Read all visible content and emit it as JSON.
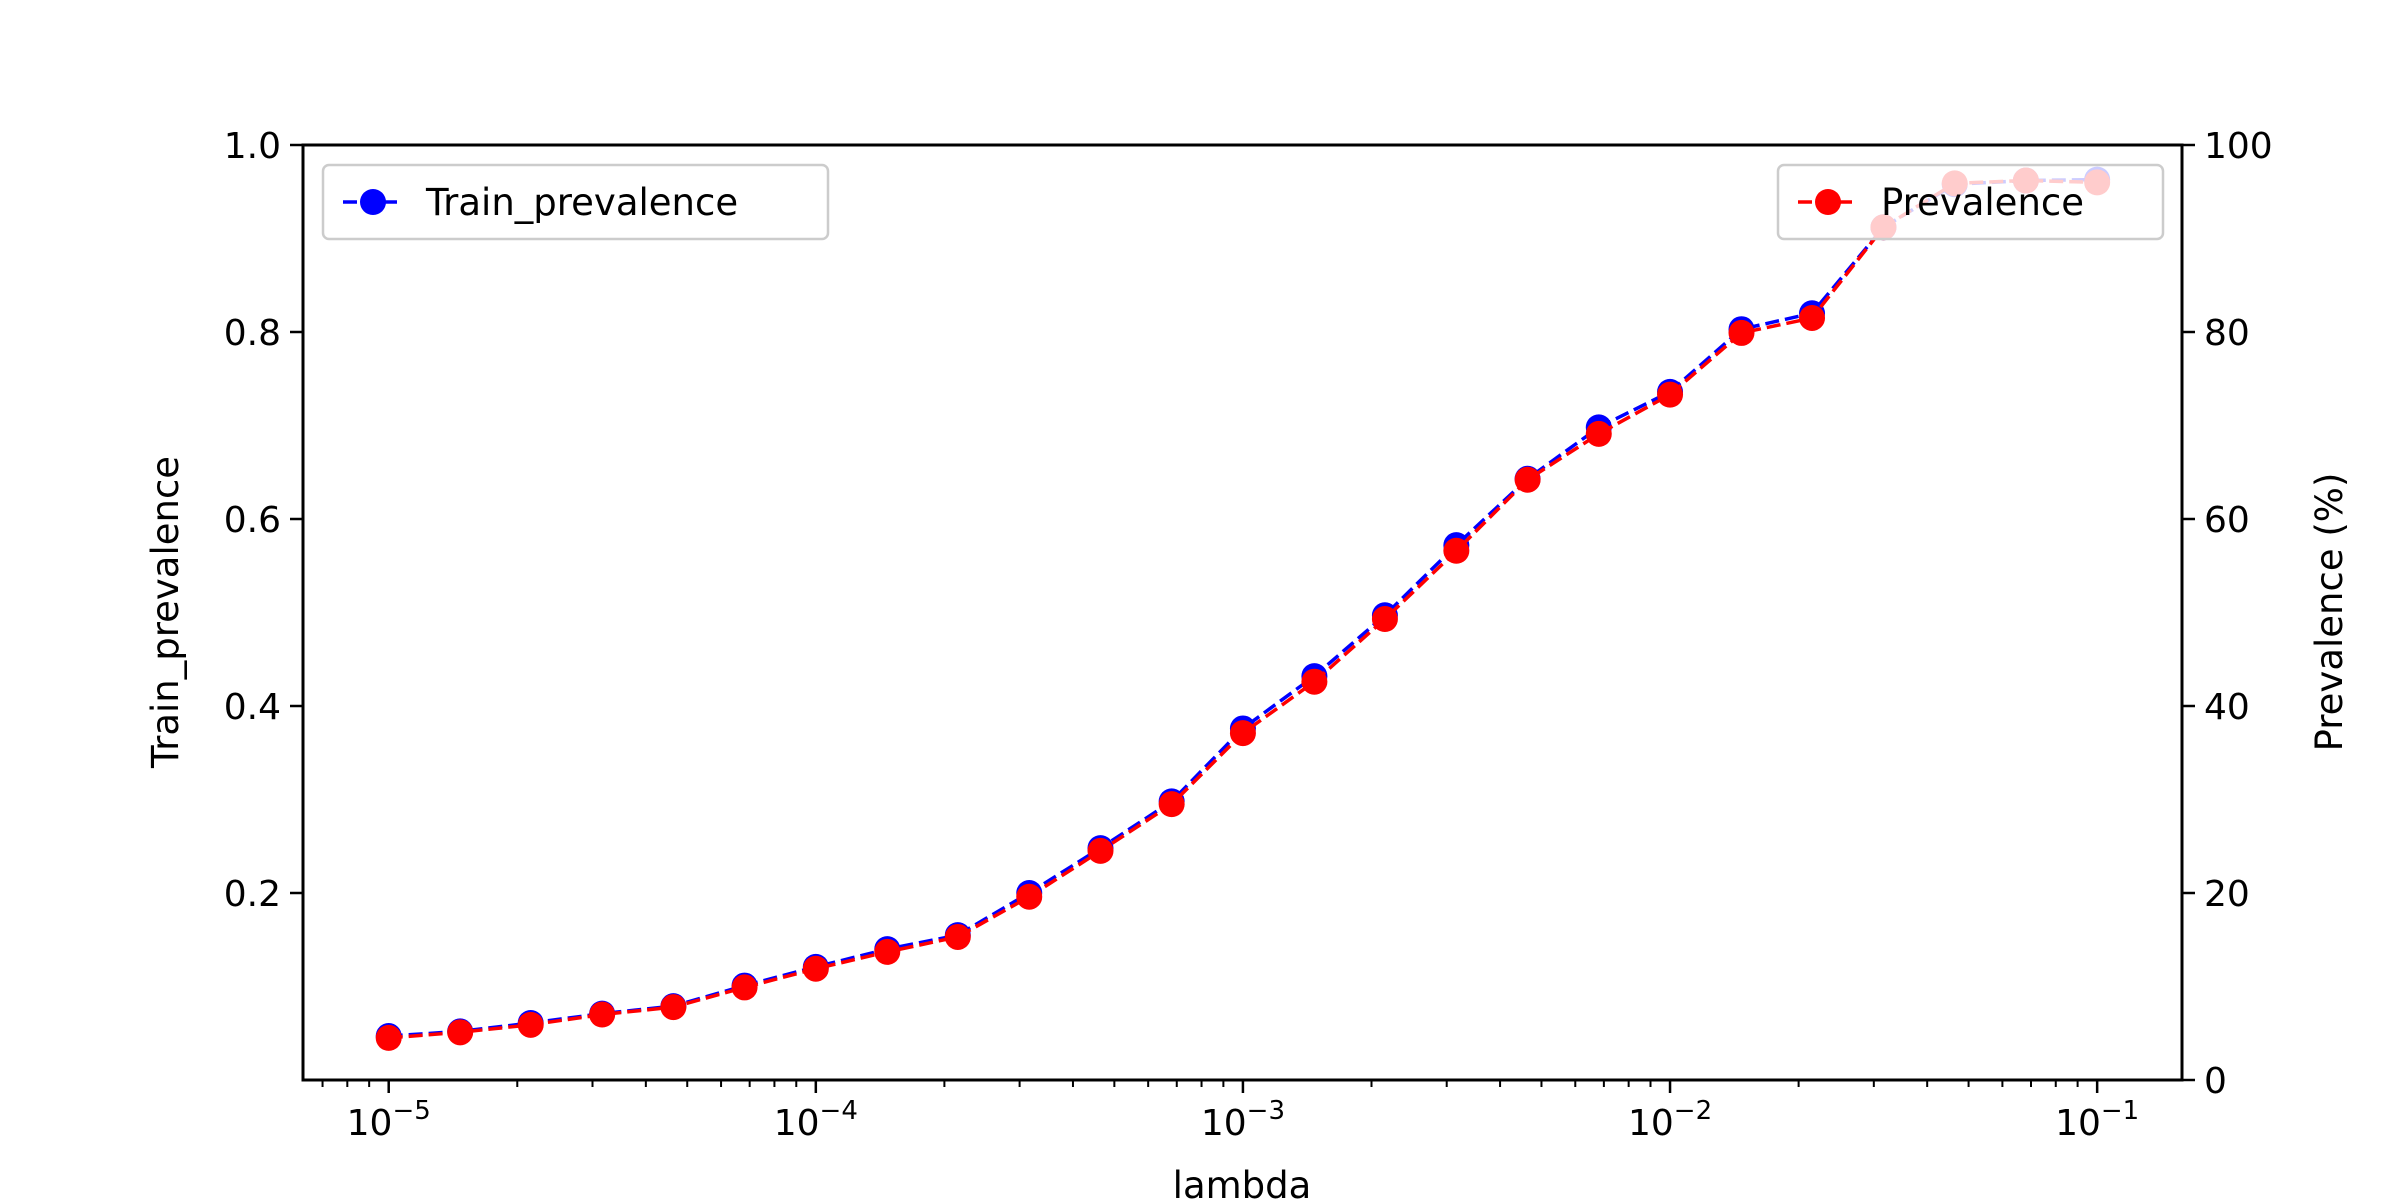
{
  "chart_data": {
    "type": "line",
    "xlabel": "lambda",
    "ylabel": "Train_prevalence",
    "y2label": "Prevalence (%)",
    "xscale": "log",
    "xlim": [
      6.3e-06,
      0.158
    ],
    "ylim": [
      0.0,
      1.0
    ],
    "y2lim": [
      0,
      100
    ],
    "x_ticks": [
      {
        "base": "10",
        "exp": "−5",
        "value": 1e-05
      },
      {
        "base": "10",
        "exp": "−4",
        "value": 0.0001
      },
      {
        "base": "10",
        "exp": "−3",
        "value": 0.001
      },
      {
        "base": "10",
        "exp": "−2",
        "value": 0.01
      },
      {
        "base": "10",
        "exp": "−1",
        "value": 0.1
      }
    ],
    "y_ticks": [
      "0.2",
      "0.4",
      "0.6",
      "0.8",
      "1.0"
    ],
    "y2_ticks": [
      "0",
      "20",
      "40",
      "60",
      "80",
      "100"
    ],
    "x": [
      1e-05,
      1.47e-05,
      2.15e-05,
      3.16e-05,
      4.64e-05,
      6.81e-05,
      0.0001,
      0.000147,
      0.000215,
      0.000316,
      0.000464,
      0.000681,
      0.001,
      0.00147,
      0.00215,
      0.00316,
      0.00464,
      0.00681,
      0.01,
      0.0147,
      0.0215,
      0.0316,
      0.0464,
      0.0681,
      0.1
    ],
    "series": [
      {
        "name": "Train_prevalence",
        "axis": "left",
        "color": "#0000ff",
        "linestyle": "dashed",
        "marker": "circle",
        "values": [
          0.047,
          0.052,
          0.061,
          0.071,
          0.079,
          0.101,
          0.121,
          0.14,
          0.155,
          0.2,
          0.248,
          0.298,
          0.376,
          0.432,
          0.497,
          0.572,
          0.643,
          0.698,
          0.736,
          0.803,
          0.82,
          0.912,
          0.958,
          0.962,
          0.963
        ]
      },
      {
        "name": "Prevalence",
        "axis": "right",
        "color": "#ff0000",
        "linestyle": "dashed",
        "marker": "circle",
        "values": [
          4.5,
          5.1,
          5.9,
          7.0,
          7.8,
          9.9,
          11.9,
          13.7,
          15.3,
          19.6,
          24.5,
          29.5,
          37.1,
          42.6,
          49.3,
          56.6,
          64.2,
          69.1,
          73.3,
          79.9,
          81.5,
          91.2,
          95.9,
          96.2,
          96.0
        ]
      }
    ],
    "legends": [
      {
        "position": "upper left",
        "entries": [
          "Train_prevalence"
        ]
      },
      {
        "position": "upper right",
        "entries": [
          "Prevalence"
        ]
      }
    ]
  }
}
